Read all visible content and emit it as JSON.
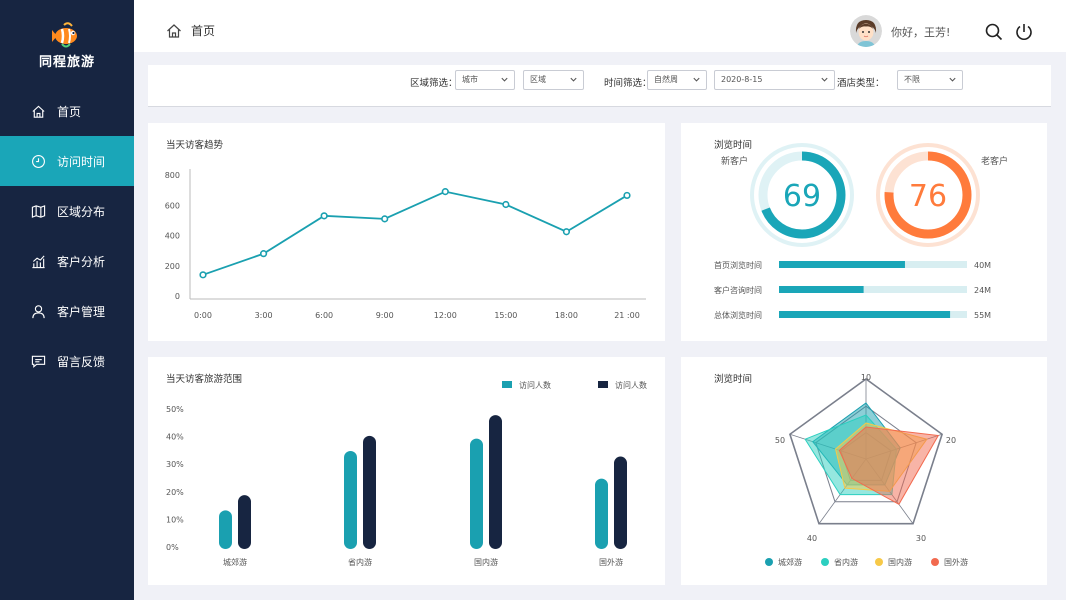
{
  "brand": {
    "name": "同程旅游"
  },
  "sidebar": {
    "items": [
      {
        "id": "home",
        "label": "首页",
        "icon": "home-icon",
        "active": false
      },
      {
        "id": "visit",
        "label": "访问时间",
        "icon": "clock-icon",
        "active": true
      },
      {
        "id": "region",
        "label": "区域分布",
        "icon": "map-icon",
        "active": false
      },
      {
        "id": "analysis",
        "label": "客户分析",
        "icon": "chart-icon",
        "active": false
      },
      {
        "id": "manage",
        "label": "客户管理",
        "icon": "user-icon",
        "active": false
      },
      {
        "id": "feedback",
        "label": "留言反馈",
        "icon": "message-icon",
        "active": false
      }
    ]
  },
  "header": {
    "breadcrumb": "首页",
    "greeting": "你好，王芳!"
  },
  "filters": {
    "region_label": "区域筛选：",
    "city": "城市",
    "area": "区域",
    "time_label": "时间筛选：",
    "period": "自然周",
    "date": "2020-8-15",
    "hotel_label": "酒店类型：",
    "hotel_type": "不限"
  },
  "trend": {
    "title": "当天访客趋势",
    "chart_data": {
      "type": "line",
      "categories": [
        "0:00",
        "3:00",
        "6:00",
        "9:00",
        "12:00",
        "15:00",
        "18:00",
        "21 :00"
      ],
      "values": [
        140,
        280,
        530,
        510,
        690,
        605,
        425,
        665
      ],
      "yticks": [
        0,
        200,
        400,
        600,
        800
      ],
      "ylim": [
        0,
        800
      ],
      "color": "#1aa0b0"
    }
  },
  "browse": {
    "title": "浏览时间",
    "new_label": "新客户",
    "old_label": "老客户",
    "new_value": "69",
    "old_value": "76",
    "new_color": "#1aa6b8",
    "old_color": "#ff7b3c",
    "bars": [
      {
        "label": "首页浏览时间",
        "value": "40M",
        "fraction": 0.67
      },
      {
        "label": "客户咨询时间",
        "value": "24M",
        "fraction": 0.45
      },
      {
        "label": "总体浏览时间",
        "value": "55M",
        "fraction": 0.91
      }
    ]
  },
  "range": {
    "title": "当天访客旅游范围",
    "chart_data": {
      "type": "bar",
      "categories": [
        "城郊游",
        "省内游",
        "国内游",
        "国外游"
      ],
      "series": [
        {
          "name": "访问人数",
          "values": [
            14,
            35.5,
            40,
            25.5
          ],
          "color": "#1aa0b0"
        },
        {
          "name": "访问人数",
          "values": [
            19.5,
            41,
            48.5,
            33.5
          ],
          "color": "#172541"
        }
      ],
      "yticks": [
        "0%",
        "10%",
        "20%",
        "30%",
        "40%",
        "50%"
      ],
      "ylim": [
        0,
        50
      ]
    }
  },
  "radar": {
    "title": "浏览时间",
    "chart_data": {
      "type": "radar",
      "axis_labels": [
        "10",
        "20",
        "30",
        "40",
        "50"
      ],
      "series": [
        {
          "name": "城郊游",
          "color": "#1aa0b0",
          "values": [
            0.7,
            0.45,
            0.4,
            0.4,
            0.7
          ]
        },
        {
          "name": "省内游",
          "color": "#2ccfc0",
          "values": [
            0.55,
            0.4,
            0.55,
            0.55,
            0.8
          ]
        },
        {
          "name": "国内游",
          "color": "#f7c948",
          "values": [
            0.45,
            0.8,
            0.5,
            0.45,
            0.4
          ]
        },
        {
          "name": "国外游",
          "color": "#f26a4f",
          "values": [
            0.4,
            0.95,
            0.7,
            0.3,
            0.35
          ]
        }
      ]
    }
  }
}
